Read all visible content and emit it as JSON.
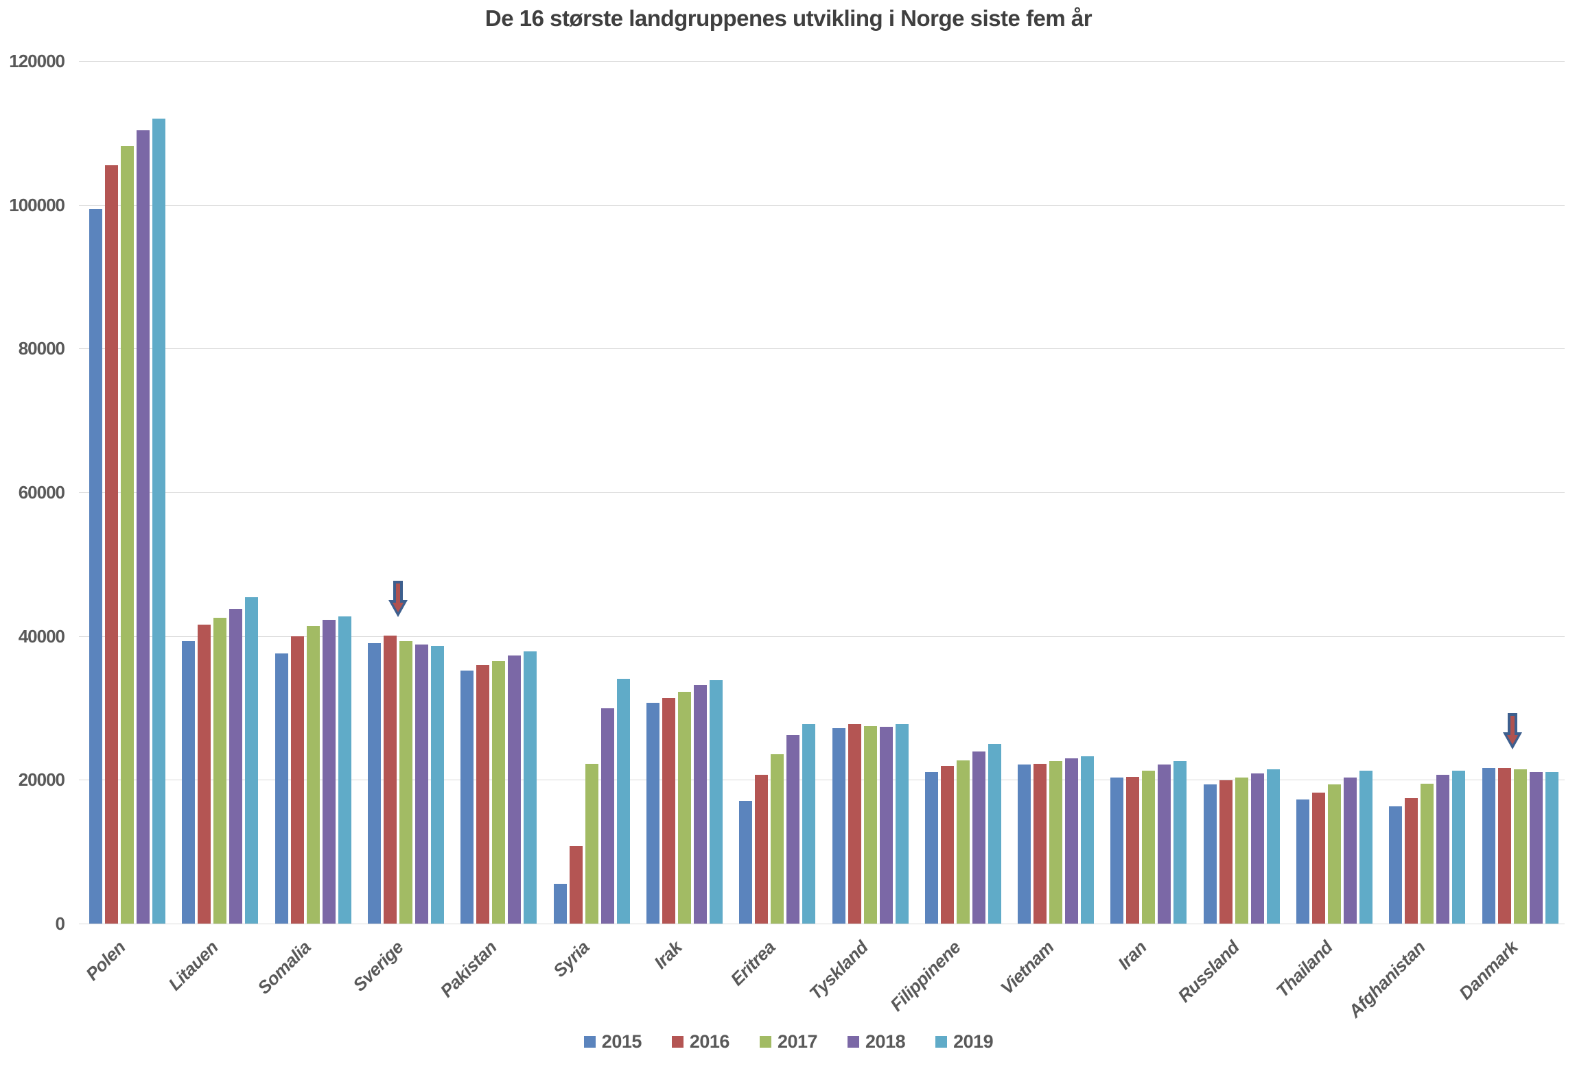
{
  "title": "De 16 største landgruppenes utvikling i Norge siste fem år",
  "chart_data": {
    "type": "bar",
    "title": "De 16 største landgruppenes utvikling i Norge siste fem år",
    "categories": [
      "Polen",
      "Litauen",
      "Somalia",
      "Sverige",
      "Pakistan",
      "Syria",
      "Irak",
      "Eritrea",
      "Tyskland",
      "Filippinene",
      "Vietnam",
      "Iran",
      "Russland",
      "Thailand",
      "Afghanistan",
      "Danmark"
    ],
    "series": [
      {
        "name": "2015",
        "color": "#5b84bd",
        "values": [
          99400,
          39300,
          37600,
          39000,
          35200,
          5500,
          30700,
          17100,
          27200,
          21100,
          22100,
          20300,
          19400,
          17300,
          16300,
          21700
        ]
      },
      {
        "name": "2016",
        "color": "#b45553",
        "values": [
          105500,
          41600,
          40000,
          40100,
          36000,
          10800,
          31400,
          20700,
          27800,
          21900,
          22200,
          20400,
          19900,
          18200,
          17500,
          21700
        ]
      },
      {
        "name": "2017",
        "color": "#a2bb64",
        "values": [
          108200,
          42500,
          41400,
          39300,
          36500,
          22200,
          32200,
          23600,
          27500,
          22700,
          22600,
          21300,
          20300,
          19400,
          19500,
          21500
        ]
      },
      {
        "name": "2018",
        "color": "#7b68a6",
        "values": [
          110400,
          43800,
          42300,
          38800,
          37300,
          30000,
          33200,
          26200,
          27400,
          23900,
          23000,
          22100,
          20900,
          20300,
          20700,
          21100
        ]
      },
      {
        "name": "2019",
        "color": "#60abc8",
        "values": [
          112000,
          45400,
          42700,
          38600,
          37900,
          34100,
          33900,
          27800,
          27800,
          25000,
          23300,
          22600,
          21500,
          21300,
          21300,
          21100
        ]
      }
    ],
    "y_axis": {
      "min": 0,
      "max": 120000,
      "step": 20000,
      "tick_labels": [
        "0",
        "20000",
        "40000",
        "60000",
        "80000",
        "100000",
        "120000"
      ]
    },
    "x_axis": {
      "label_rotation_deg": 45
    },
    "grid": true,
    "legend_position": "bottom",
    "annotations": [
      {
        "type": "down-arrow",
        "category": "Sverige",
        "year": "2016"
      },
      {
        "type": "down-arrow",
        "category": "Danmark",
        "year": "2016"
      }
    ]
  },
  "style": {
    "grid_color": "#d9d9d9",
    "axis_text_color": "#595959",
    "title_color": "#3f3f3f",
    "background": "#ffffff",
    "arrow_fill": "#b0524f",
    "arrow_stroke": "#3d5f8e"
  }
}
